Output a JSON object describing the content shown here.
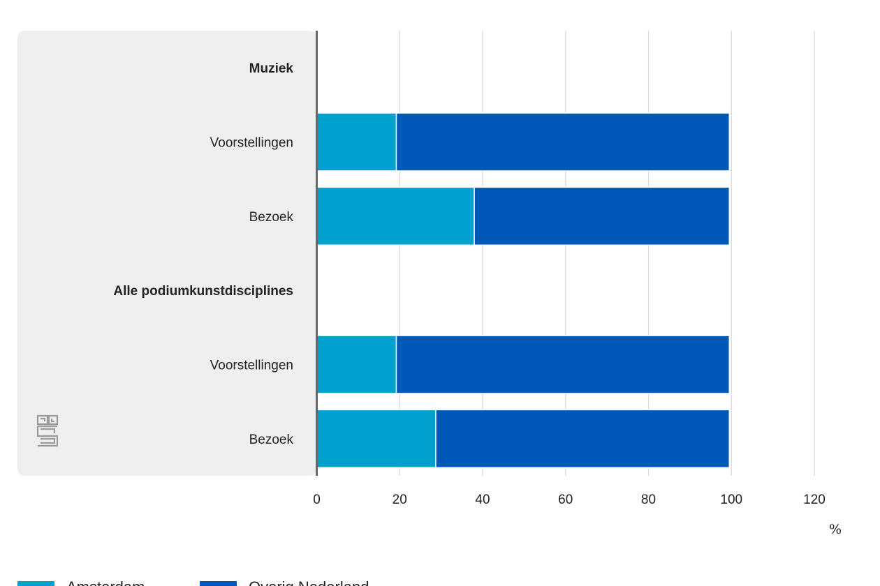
{
  "chart_data": {
    "type": "bar",
    "orientation": "horizontal",
    "stacked": true,
    "categories": [
      "Muziek",
      "Voorstellingen",
      "Bezoek",
      "Alle podiumkunstdisciplines",
      "Voorstellingen",
      "Bezoek"
    ],
    "category_is_header": [
      true,
      false,
      false,
      true,
      false,
      false
    ],
    "series": [
      {
        "name": "Amsterdam",
        "color": "#00a1cd",
        "values": [
          null,
          19.2,
          38.0,
          null,
          19.2,
          28.7
        ]
      },
      {
        "name": "Overig Nederland",
        "color": "#0058b8",
        "values": [
          null,
          80.3,
          61.5,
          null,
          80.3,
          70.8
        ]
      }
    ],
    "xlim": [
      0,
      120
    ],
    "xticks": [
      "0",
      "20",
      "40",
      "60",
      "80",
      "100",
      "120"
    ],
    "xunit": "%",
    "grid": true,
    "legend_position": "bottom-left"
  }
}
